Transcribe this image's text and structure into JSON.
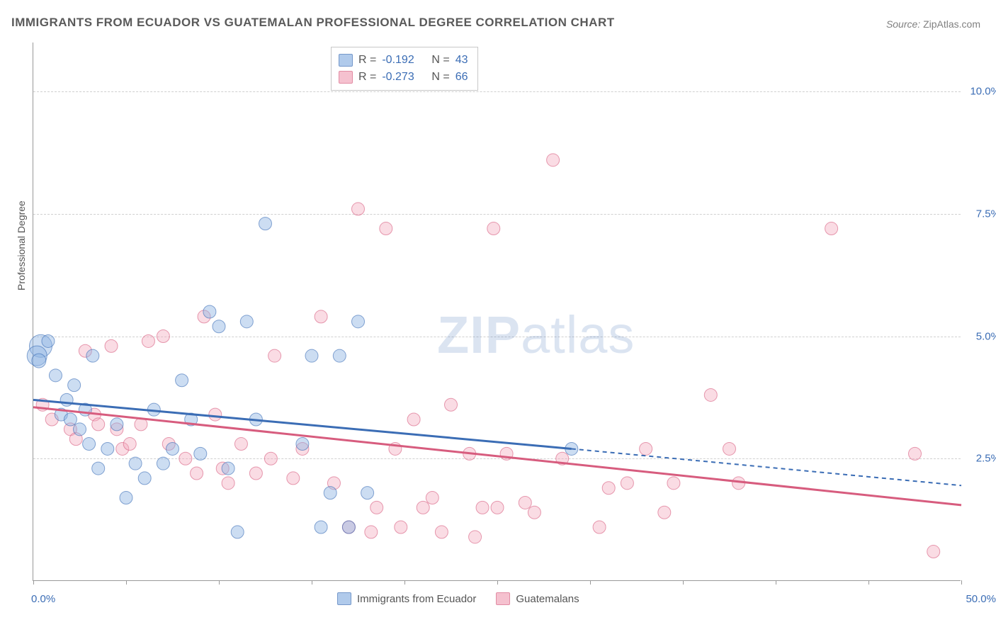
{
  "title": "IMMIGRANTS FROM ECUADOR VS GUATEMALAN PROFESSIONAL DEGREE CORRELATION CHART",
  "source_label": "Source:",
  "source_name": "ZipAtlas.com",
  "watermark_zip": "ZIP",
  "watermark_atlas": "atlas",
  "chart": {
    "type": "scatter",
    "xlim": [
      0,
      50
    ],
    "ylim": [
      0,
      11
    ],
    "ylabel": "Professional Degree",
    "x_tick_positions": [
      0,
      5,
      10,
      15,
      20,
      25,
      30,
      35,
      40,
      45,
      50
    ],
    "x_labels": [
      {
        "x": 0,
        "text": "0.0%"
      },
      {
        "x": 50,
        "text": "50.0%"
      }
    ],
    "y_gridlines": [
      2.5,
      5.0,
      7.5,
      10.0
    ],
    "y_labels": [
      {
        "y": 2.5,
        "text": "2.5%"
      },
      {
        "y": 5.0,
        "text": "5.0%"
      },
      {
        "y": 7.5,
        "text": "7.5%"
      },
      {
        "y": 10.0,
        "text": "10.0%"
      }
    ],
    "background_color": "#ffffff",
    "grid_color": "#d0d0d0",
    "axis_color": "#999999",
    "stats": [
      {
        "R": "-0.192",
        "N": "43"
      },
      {
        "R": "-0.273",
        "N": "66"
      }
    ],
    "series": [
      {
        "name": "Immigrants from Ecuador",
        "fill": "#8fb4e3",
        "stroke": "#3b6db5",
        "line_color": "#3b6db5",
        "marker_radius": 9,
        "fill_opacity": 0.45,
        "trend": {
          "x1": 0,
          "y1": 3.7,
          "x2": 29,
          "y2": 2.7,
          "x3": 50,
          "y3": 1.95
        },
        "points": [
          [
            0.4,
            4.8,
            16
          ],
          [
            0.2,
            4.6,
            14
          ],
          [
            0.3,
            4.5,
            10
          ],
          [
            0.8,
            4.9
          ],
          [
            1.2,
            4.2
          ],
          [
            1.8,
            3.7
          ],
          [
            1.5,
            3.4
          ],
          [
            2.0,
            3.3
          ],
          [
            2.5,
            3.1
          ],
          [
            2.2,
            4.0
          ],
          [
            2.8,
            3.5
          ],
          [
            3.0,
            2.8
          ],
          [
            3.5,
            2.3
          ],
          [
            4.0,
            2.7
          ],
          [
            4.5,
            3.2
          ],
          [
            3.2,
            4.6
          ],
          [
            5.5,
            2.4
          ],
          [
            6.0,
            2.1
          ],
          [
            5.0,
            1.7
          ],
          [
            6.5,
            3.5
          ],
          [
            7.5,
            2.7
          ],
          [
            7.0,
            2.4
          ],
          [
            8.0,
            4.1
          ],
          [
            8.5,
            3.3
          ],
          [
            9.0,
            2.6
          ],
          [
            9.5,
            5.5
          ],
          [
            10.0,
            5.2
          ],
          [
            10.5,
            2.3
          ],
          [
            11.0,
            1.0
          ],
          [
            11.5,
            5.3
          ],
          [
            12.0,
            3.3
          ],
          [
            12.5,
            7.3
          ],
          [
            14.5,
            2.8
          ],
          [
            15.0,
            4.6
          ],
          [
            15.5,
            1.1
          ],
          [
            16.5,
            4.6
          ],
          [
            16.0,
            1.8
          ],
          [
            17.0,
            1.1
          ],
          [
            17.5,
            5.3
          ],
          [
            18.0,
            1.8
          ],
          [
            29.0,
            2.7
          ]
        ]
      },
      {
        "name": "Guatemalans",
        "fill": "#f2a8bb",
        "stroke": "#d75c7e",
        "line_color": "#d75c7e",
        "marker_radius": 9,
        "fill_opacity": 0.4,
        "trend": {
          "x1": 0,
          "y1": 3.55,
          "x2": 50,
          "y2": 1.55
        },
        "points": [
          [
            0.5,
            3.6
          ],
          [
            1.0,
            3.3
          ],
          [
            2.0,
            3.1
          ],
          [
            2.3,
            2.9
          ],
          [
            2.8,
            4.7
          ],
          [
            3.3,
            3.4
          ],
          [
            3.5,
            3.2
          ],
          [
            4.2,
            4.8
          ],
          [
            4.5,
            3.1
          ],
          [
            4.8,
            2.7
          ],
          [
            5.2,
            2.8
          ],
          [
            5.8,
            3.2
          ],
          [
            6.2,
            4.9
          ],
          [
            7.0,
            5.0
          ],
          [
            7.3,
            2.8
          ],
          [
            8.2,
            2.5
          ],
          [
            8.8,
            2.2
          ],
          [
            9.2,
            5.4
          ],
          [
            9.8,
            3.4
          ],
          [
            10.2,
            2.3
          ],
          [
            10.5,
            2.0
          ],
          [
            11.2,
            2.8
          ],
          [
            12.0,
            2.2
          ],
          [
            12.8,
            2.5
          ],
          [
            13.0,
            4.6
          ],
          [
            14.0,
            2.1
          ],
          [
            14.5,
            2.7
          ],
          [
            15.5,
            5.4
          ],
          [
            16.2,
            2.0
          ],
          [
            17.0,
            1.1
          ],
          [
            17.5,
            7.6
          ],
          [
            18.2,
            1.0
          ],
          [
            18.5,
            1.5
          ],
          [
            19.0,
            7.2
          ],
          [
            19.5,
            2.7
          ],
          [
            19.8,
            1.1
          ],
          [
            20.5,
            3.3
          ],
          [
            21.0,
            1.5
          ],
          [
            21.5,
            1.7
          ],
          [
            22.0,
            1.0
          ],
          [
            22.5,
            3.6
          ],
          [
            23.5,
            2.6
          ],
          [
            23.8,
            0.9
          ],
          [
            24.2,
            1.5
          ],
          [
            24.8,
            7.2
          ],
          [
            25.0,
            1.5
          ],
          [
            25.5,
            2.6
          ],
          [
            26.5,
            1.6
          ],
          [
            27.0,
            1.4
          ],
          [
            28.0,
            8.6
          ],
          [
            28.5,
            2.5
          ],
          [
            30.5,
            1.1
          ],
          [
            31.0,
            1.9
          ],
          [
            32.0,
            2.0
          ],
          [
            33.0,
            2.7
          ],
          [
            34.0,
            1.4
          ],
          [
            34.5,
            2.0
          ],
          [
            36.5,
            3.8
          ],
          [
            37.5,
            2.7
          ],
          [
            38.0,
            2.0
          ],
          [
            43.0,
            7.2
          ],
          [
            47.5,
            2.6
          ],
          [
            48.5,
            0.6
          ]
        ]
      }
    ]
  }
}
